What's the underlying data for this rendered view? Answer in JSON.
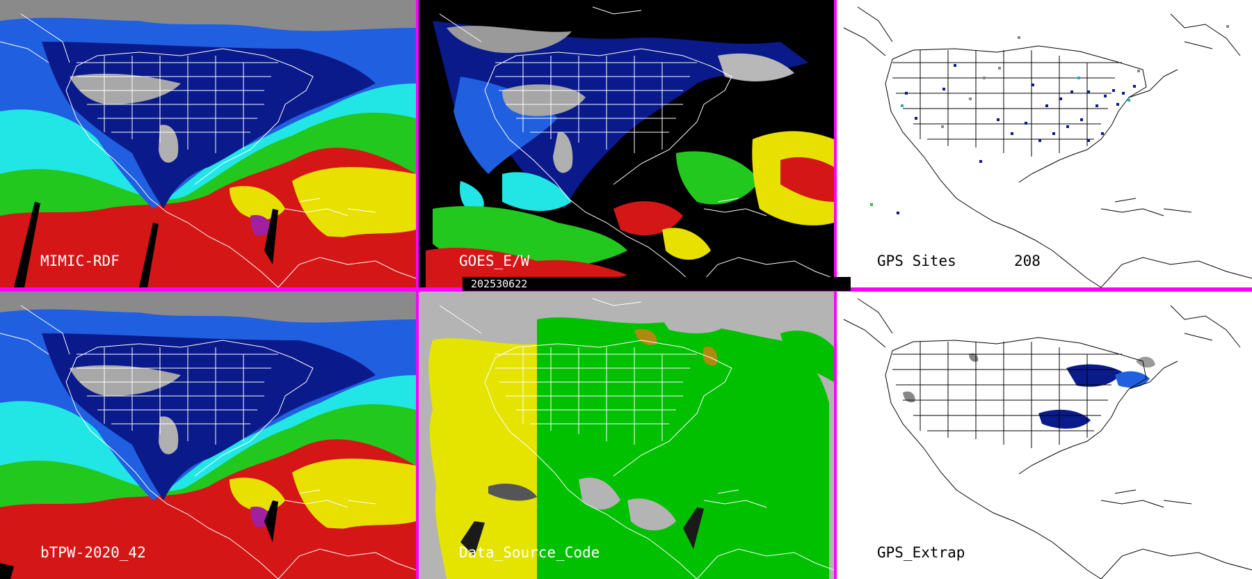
{
  "panels": [
    {
      "id": "mimic",
      "label": "MIMIC-RDF"
    },
    {
      "id": "goes",
      "label": "GOES_E/W"
    },
    {
      "id": "gps_sites",
      "label": "GPS Sites",
      "count": "208"
    },
    {
      "id": "btpw",
      "label": "bTPW-2020_42"
    },
    {
      "id": "dsc",
      "label": "Data_Source_Code"
    },
    {
      "id": "gps_extrap",
      "label": "GPS_Extrap"
    }
  ],
  "date": "202530622",
  "colors": {
    "separator": "#ff00ff",
    "pw_white": "#ffffff",
    "pw_gray": "#9a9a9a",
    "pw_navy": "#0a1a8a",
    "pw_blue": "#1f5fe0",
    "pw_cyan": "#22e6e6",
    "pw_green": "#22c81e",
    "pw_yellow": "#e8e000",
    "pw_red": "#d81818",
    "pw_purple": "#a020a0",
    "dsc_gray": "#b4b4b4",
    "dsc_yellow": "#e4e400",
    "dsc_green": "#00c000",
    "dsc_brown": "#b08a10"
  }
}
